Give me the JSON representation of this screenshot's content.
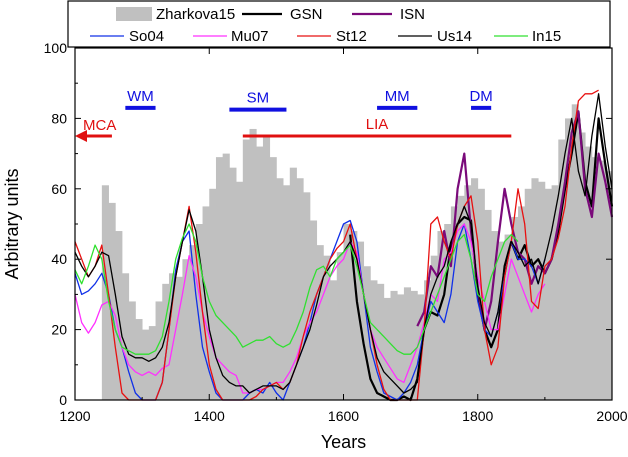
{
  "chart_data": {
    "type": "area",
    "title": "",
    "xlabel": "Years",
    "ylabel": "Arbitrary units",
    "xlim": [
      1200,
      2000
    ],
    "ylim": [
      0,
      100
    ],
    "xticks": [
      1200,
      1400,
      1600,
      1800,
      2000
    ],
    "yticks": [
      0,
      20,
      40,
      60,
      80,
      100
    ],
    "grid": false,
    "legend_position": "top",
    "bar_series": {
      "name": "Zharkova15",
      "color": "#c0c0c0",
      "bin_width": 10,
      "x": [
        1240,
        1250,
        1260,
        1270,
        1280,
        1290,
        1300,
        1310,
        1320,
        1330,
        1340,
        1350,
        1360,
        1370,
        1380,
        1390,
        1400,
        1410,
        1420,
        1430,
        1440,
        1450,
        1460,
        1470,
        1480,
        1490,
        1500,
        1510,
        1520,
        1530,
        1540,
        1550,
        1560,
        1570,
        1580,
        1590,
        1600,
        1610,
        1620,
        1630,
        1640,
        1650,
        1660,
        1670,
        1680,
        1690,
        1700,
        1710,
        1720,
        1730,
        1740,
        1750,
        1760,
        1770,
        1780,
        1790,
        1800,
        1810,
        1820,
        1830,
        1840,
        1850,
        1860,
        1870,
        1880,
        1890,
        1900,
        1910,
        1920,
        1930,
        1940,
        1950,
        1960,
        1970,
        1980,
        1990
      ],
      "values": [
        61,
        56,
        48,
        36,
        28,
        23,
        20,
        21,
        28,
        33,
        36,
        35,
        40,
        44,
        50,
        55,
        60,
        69,
        70,
        66,
        62,
        74,
        77,
        72,
        75,
        69,
        63,
        61,
        66,
        63,
        59,
        51,
        44,
        41,
        34,
        42,
        50,
        48,
        45,
        38,
        34,
        33,
        29,
        31,
        30,
        32,
        31,
        30,
        34,
        41,
        48,
        50,
        55,
        58,
        61,
        63,
        60,
        54,
        48,
        45,
        47,
        52,
        55,
        60,
        63,
        62,
        60,
        61,
        74,
        80,
        84,
        76,
        72,
        69,
        68,
        65
      ]
    },
    "series": [
      {
        "name": "GSN",
        "color": "#000000",
        "width": 2.2,
        "x": [
          1610,
          1620,
          1630,
          1640,
          1650,
          1660,
          1670,
          1680,
          1690,
          1700,
          1710,
          1720,
          1730,
          1740,
          1750,
          1760,
          1770,
          1780,
          1790,
          1800,
          1810,
          1820,
          1830,
          1840,
          1850,
          1860,
          1870,
          1880,
          1890,
          1900,
          1910,
          1920,
          1930,
          1940,
          1950,
          1960,
          1970,
          1980,
          1990,
          2000
        ],
        "values": [
          47,
          28,
          16,
          6,
          2,
          1,
          0,
          0,
          1,
          0,
          6,
          20,
          25,
          24,
          30,
          44,
          50,
          52,
          51,
          30,
          20,
          15,
          20,
          38,
          45,
          40,
          44,
          38,
          40,
          36,
          40,
          48,
          60,
          70,
          82,
          62,
          55,
          80,
          67,
          55
        ]
      },
      {
        "name": "ISN",
        "color": "#7a0a7a",
        "width": 2.2,
        "x": [
          1710,
          1720,
          1730,
          1740,
          1750,
          1760,
          1770,
          1780,
          1790,
          1800,
          1810,
          1820,
          1830,
          1840,
          1850,
          1860,
          1870,
          1880,
          1890,
          1900,
          1910,
          1920,
          1930,
          1940,
          1950,
          1960,
          1970,
          1980,
          1990,
          2000
        ],
        "values": [
          21,
          25,
          38,
          35,
          48,
          38,
          60,
          70,
          48,
          32,
          20,
          28,
          45,
          60,
          50,
          42,
          40,
          33,
          38,
          36,
          40,
          50,
          62,
          76,
          82,
          60,
          52,
          70,
          62,
          52
        ]
      },
      {
        "name": "So04",
        "color": "#1030e8",
        "width": 1.3,
        "x": [
          1200,
          1210,
          1220,
          1230,
          1240,
          1250,
          1260,
          1270,
          1280,
          1290,
          1300,
          1310,
          1320,
          1330,
          1340,
          1350,
          1360,
          1370,
          1380,
          1390,
          1400,
          1410,
          1420,
          1430,
          1440,
          1450,
          1460,
          1470,
          1480,
          1490,
          1500,
          1510,
          1520,
          1530,
          1540,
          1550,
          1560,
          1570,
          1580,
          1590,
          1600,
          1610,
          1620,
          1630,
          1640,
          1650,
          1660,
          1670,
          1680,
          1690,
          1700,
          1710,
          1720,
          1730,
          1740,
          1750,
          1760,
          1770,
          1780,
          1790,
          1800,
          1810,
          1820,
          1830,
          1840,
          1850,
          1860,
          1870,
          1880,
          1890,
          1900
        ],
        "values": [
          36,
          30,
          31,
          33,
          36,
          30,
          20,
          15,
          8,
          2,
          0,
          0,
          0,
          5,
          20,
          37,
          45,
          48,
          30,
          15,
          8,
          2,
          0,
          0,
          0,
          0,
          2,
          3,
          2,
          5,
          2,
          0,
          5,
          10,
          15,
          22,
          30,
          35,
          40,
          45,
          50,
          51,
          45,
          30,
          15,
          8,
          2,
          1,
          0,
          2,
          5,
          10,
          20,
          28,
          25,
          22,
          30,
          45,
          50,
          40,
          28,
          20,
          18,
          25,
          35,
          45,
          40,
          40,
          38,
          33,
          40
        ]
      },
      {
        "name": "Mu07",
        "color": "#ff30ff",
        "width": 1.3,
        "x": [
          1200,
          1210,
          1220,
          1230,
          1240,
          1250,
          1260,
          1270,
          1280,
          1290,
          1300,
          1310,
          1320,
          1330,
          1340,
          1350,
          1360,
          1370,
          1380,
          1390,
          1400,
          1410,
          1420,
          1430,
          1440,
          1450,
          1460,
          1470,
          1480,
          1490,
          1500,
          1510,
          1520,
          1530,
          1540,
          1550,
          1560,
          1570,
          1580,
          1590,
          1600,
          1610,
          1620,
          1630,
          1640,
          1650,
          1660,
          1670,
          1680,
          1690,
          1700,
          1710,
          1720,
          1730,
          1740,
          1750,
          1760,
          1770,
          1780,
          1790,
          1800,
          1810,
          1820,
          1830,
          1840,
          1850,
          1860,
          1870,
          1880,
          1890,
          1900
        ],
        "values": [
          30,
          22,
          19,
          22,
          27,
          28,
          24,
          15,
          10,
          8,
          7,
          8,
          7,
          9,
          10,
          20,
          30,
          41,
          35,
          25,
          18,
          12,
          10,
          8,
          7,
          2,
          2,
          3,
          3,
          4,
          5,
          5,
          8,
          12,
          18,
          22,
          25,
          30,
          35,
          38,
          40,
          45,
          42,
          30,
          20,
          15,
          12,
          9,
          6,
          5,
          10,
          15,
          22,
          30,
          28,
          40,
          42,
          48,
          50,
          45,
          35,
          28,
          20,
          20,
          30,
          40,
          35,
          30,
          25,
          30,
          33
        ]
      },
      {
        "name": "St12",
        "color": "#e81010",
        "width": 1.3,
        "x": [
          1200,
          1210,
          1220,
          1230,
          1240,
          1250,
          1260,
          1270,
          1280,
          1290,
          1300,
          1310,
          1320,
          1330,
          1340,
          1350,
          1360,
          1370,
          1380,
          1390,
          1400,
          1410,
          1420,
          1430,
          1440,
          1450,
          1460,
          1470,
          1480,
          1490,
          1500,
          1510,
          1520,
          1530,
          1540,
          1550,
          1560,
          1570,
          1580,
          1590,
          1600,
          1610,
          1620,
          1630,
          1640,
          1650,
          1660,
          1670,
          1680,
          1690,
          1700,
          1710,
          1720,
          1730,
          1740,
          1750,
          1760,
          1770,
          1780,
          1790,
          1800,
          1810,
          1820,
          1830,
          1840,
          1850,
          1860,
          1870,
          1880,
          1890,
          1900,
          1910,
          1920,
          1930,
          1940,
          1950,
          1960,
          1970,
          1980
        ],
        "values": [
          45,
          40,
          35,
          38,
          44,
          30,
          15,
          2,
          0,
          0,
          0,
          0,
          0,
          5,
          20,
          35,
          45,
          55,
          42,
          25,
          10,
          3,
          0,
          0,
          0,
          0,
          0,
          1,
          3,
          4,
          5,
          3,
          5,
          10,
          18,
          25,
          30,
          35,
          40,
          43,
          45,
          50,
          40,
          30,
          20,
          10,
          3,
          0,
          0,
          0,
          0,
          0,
          20,
          50,
          52,
          45,
          40,
          50,
          55,
          58,
          45,
          20,
          10,
          15,
          35,
          45,
          60,
          50,
          28,
          26,
          38,
          40,
          46,
          55,
          72,
          85,
          87,
          87,
          88
        ]
      },
      {
        "name": "Us14",
        "color": "#000000",
        "width": 1.3,
        "x": [
          1200,
          1210,
          1220,
          1230,
          1240,
          1250,
          1260,
          1270,
          1280,
          1290,
          1300,
          1310,
          1320,
          1330,
          1340,
          1350,
          1360,
          1370,
          1380,
          1390,
          1400,
          1410,
          1420,
          1430,
          1440,
          1450,
          1460,
          1470,
          1480,
          1490,
          1500,
          1510,
          1520,
          1530,
          1540,
          1550,
          1560,
          1570,
          1580,
          1590,
          1600,
          1610,
          1620,
          1630,
          1640,
          1650,
          1660,
          1670,
          1680,
          1690,
          1700,
          1710,
          1720,
          1730,
          1740,
          1750,
          1760,
          1770,
          1780,
          1790,
          1800,
          1810,
          1820,
          1830,
          1840,
          1850,
          1860,
          1870,
          1880,
          1890,
          1900,
          1910,
          1920,
          1930,
          1940,
          1950,
          1960,
          1970,
          1980,
          1990,
          2000
        ],
        "values": [
          42,
          38,
          35,
          38,
          42,
          41,
          30,
          18,
          13,
          12,
          12,
          11,
          12,
          15,
          22,
          35,
          45,
          54,
          48,
          35,
          20,
          12,
          7,
          5,
          4,
          4,
          2,
          3,
          4,
          4,
          4,
          3,
          5,
          10,
          15,
          20,
          27,
          35,
          38,
          40,
          42,
          45,
          40,
          30,
          20,
          12,
          8,
          6,
          4,
          2,
          3,
          5,
          20,
          30,
          35,
          38,
          45,
          50,
          55,
          50,
          32,
          22,
          18,
          25,
          38,
          45,
          42,
          38,
          40,
          33,
          40,
          48,
          58,
          70,
          80,
          65,
          58,
          75,
          87,
          72,
          60
        ]
      },
      {
        "name": "In15",
        "color": "#30e030",
        "width": 1.3,
        "x": [
          1200,
          1210,
          1220,
          1230,
          1240,
          1250,
          1260,
          1270,
          1280,
          1290,
          1300,
          1310,
          1320,
          1330,
          1340,
          1350,
          1360,
          1370,
          1380,
          1390,
          1400,
          1410,
          1420,
          1430,
          1440,
          1450,
          1460,
          1470,
          1480,
          1490,
          1500,
          1510,
          1520,
          1530,
          1540,
          1550,
          1560,
          1570,
          1580,
          1590,
          1600,
          1610,
          1620,
          1630,
          1640,
          1650,
          1660,
          1670,
          1680,
          1690,
          1700,
          1710,
          1720,
          1730,
          1740,
          1750,
          1760,
          1770,
          1780,
          1790,
          1800,
          1810,
          1820,
          1830,
          1840,
          1850,
          1860
        ],
        "values": [
          37,
          33,
          38,
          44,
          40,
          28,
          20,
          15,
          14,
          13,
          13,
          13,
          14,
          18,
          28,
          40,
          46,
          50,
          45,
          35,
          28,
          24,
          22,
          20,
          18,
          15,
          16,
          17,
          17,
          18,
          16,
          15,
          16,
          20,
          25,
          32,
          37,
          38,
          35,
          40,
          42,
          44,
          38,
          30,
          22,
          20,
          18,
          16,
          14,
          13,
          13,
          15,
          20,
          25,
          30,
          35,
          40,
          45,
          47,
          40,
          30,
          28,
          35,
          40,
          45,
          47,
          45
        ]
      }
    ],
    "annotations": [
      {
        "text": "WM",
        "color": "#1010e0",
        "x_from": 1275,
        "x_to": 1320,
        "y": 83
      },
      {
        "text": "SM",
        "color": "#1010e0",
        "x_from": 1430,
        "x_to": 1515,
        "y": 82.5
      },
      {
        "text": "MM",
        "color": "#1010e0",
        "x_from": 1650,
        "x_to": 1710,
        "y": 83
      },
      {
        "text": "DM",
        "color": "#1010e0",
        "x_from": 1790,
        "x_to": 1820,
        "y": 83
      },
      {
        "text": "LIA",
        "color": "#e01010",
        "x_from": 1450,
        "x_to": 1850,
        "y": 75
      },
      {
        "text": "MCA",
        "color": "#e01010",
        "x_from": 1200,
        "x_to": 1255,
        "y": 75,
        "arrow": "left"
      }
    ]
  }
}
